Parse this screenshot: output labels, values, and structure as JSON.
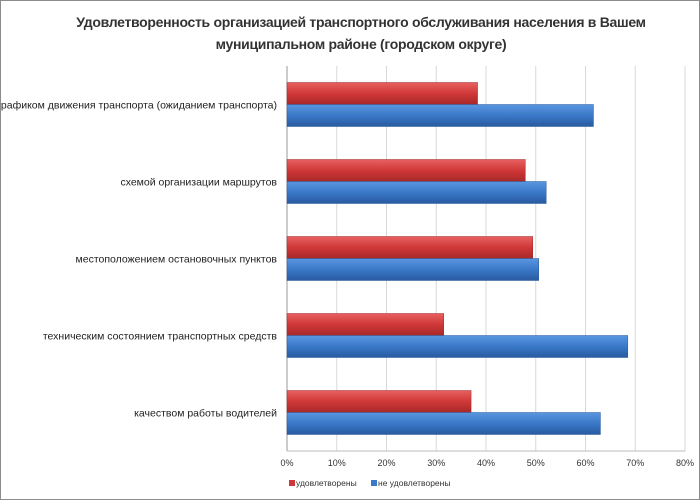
{
  "chart_data": {
    "type": "bar",
    "orientation": "horizontal",
    "title": "Удовлетворенность организацией транспортного обслуживания населения в Вашем муниципальном районе (городском округе)",
    "categories": [
      "графиком движения транспорта (ожиданием транспорта)",
      "схемой организации маршрутов",
      "местоположением остановочных пунктов",
      "техническим состоянием транспортных средств",
      "качеством работы водителей"
    ],
    "series": [
      {
        "name": "удовлетворены",
        "color": "#d03838",
        "values": [
          38.3,
          47.9,
          49.4,
          31.5,
          37.0
        ]
      },
      {
        "name": "не удовлетворены",
        "color": "#3a78c8",
        "values": [
          61.6,
          52.1,
          50.6,
          68.5,
          63.0
        ]
      }
    ],
    "xlim": [
      0,
      80
    ],
    "xticks": [
      "0%",
      "10%",
      "20%",
      "30%",
      "40%",
      "50%",
      "60%",
      "70%",
      "80%"
    ],
    "grid": true,
    "legend": "bottom"
  }
}
